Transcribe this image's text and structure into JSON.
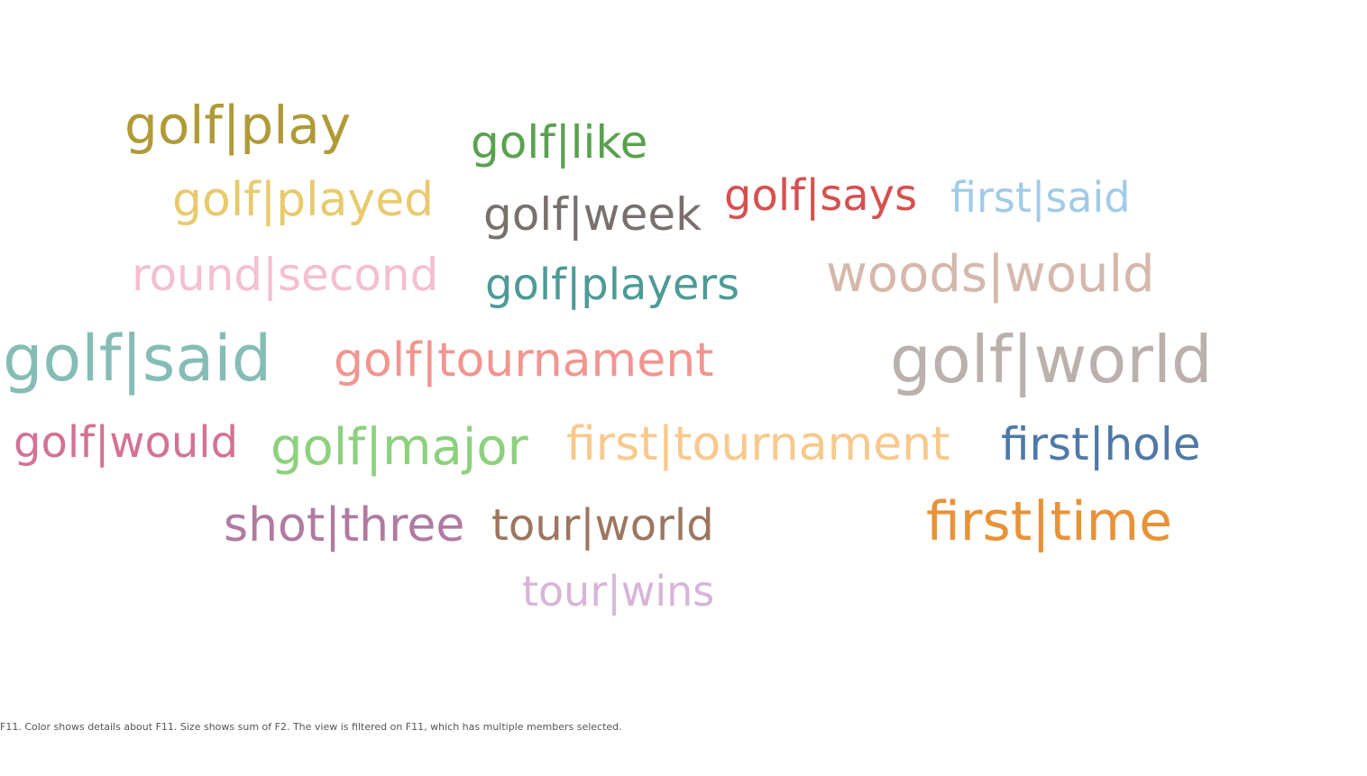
{
  "chart_data": {
    "type": "word-cloud",
    "caption": "F11.  Color shows details about F11.  Size shows sum of F2. The view is filtered on F11, which has multiple members selected.",
    "words": [
      {
        "text": "golf|play",
        "color": "#b09a36"
      },
      {
        "text": "golf|like",
        "color": "#59a14f"
      },
      {
        "text": "golf|played",
        "color": "#e8ca6e"
      },
      {
        "text": "golf|week",
        "color": "#79706e"
      },
      {
        "text": "golf|says",
        "color": "#d6504f"
      },
      {
        "text": "first|said",
        "color": "#a0cbe8"
      },
      {
        "text": "round|second",
        "color": "#f4bfd0"
      },
      {
        "text": "golf|players",
        "color": "#4e9a97"
      },
      {
        "text": "woods|would",
        "color": "#d4b8ac"
      },
      {
        "text": "golf|said",
        "color": "#86bcb6"
      },
      {
        "text": "golf|tournament",
        "color": "#f2958f"
      },
      {
        "text": "golf|world",
        "color": "#bab0ac"
      },
      {
        "text": "golf|would",
        "color": "#d37295"
      },
      {
        "text": "golf|major",
        "color": "#8cd17d"
      },
      {
        "text": "first|tournament",
        "color": "#f8c98c"
      },
      {
        "text": "first|hole",
        "color": "#4e79a7"
      },
      {
        "text": "shot|three",
        "color": "#b07aa1"
      },
      {
        "text": "tour|world",
        "color": "#9d7660"
      },
      {
        "text": "first|time",
        "color": "#e89238"
      },
      {
        "text": "tour|wins",
        "color": "#d7b5d8"
      }
    ]
  }
}
